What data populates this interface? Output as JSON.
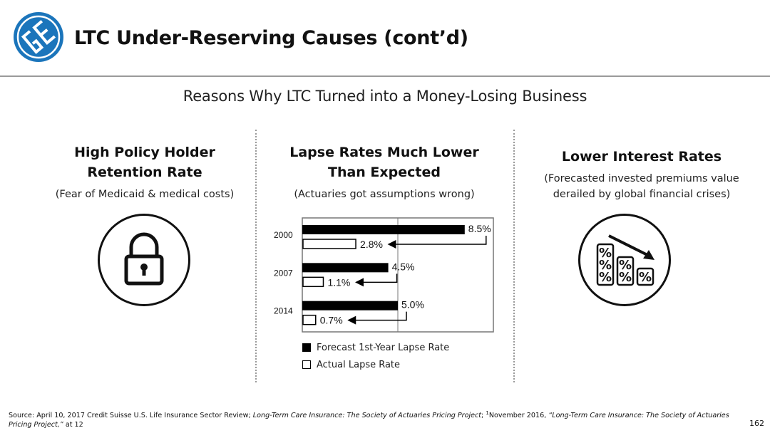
{
  "header": {
    "title": "LTC Under-Reserving Causes (cont’d)",
    "logo_icon": "company-logo-icon",
    "brand_color": "#1b75bb"
  },
  "subtitle": "Reasons Why LTC Turned into a Money-Losing Business",
  "columns": [
    {
      "heading_line1": "High Policy Holder",
      "heading_line2": "Retention Rate",
      "note_line1": "(Fear of Medicaid & medical costs)",
      "icon": "padlock-icon"
    },
    {
      "heading_line1": "Lapse Rates Much Lower",
      "heading_line2": "Than Expected",
      "note_line1": "(Actuaries got assumptions wrong)",
      "icon": "bar-chart"
    },
    {
      "heading_line1": "Lower Interest Rates",
      "note_line1": "(Forecasted invested premiums value",
      "note_line2": "derailed by global financial crises)",
      "icon": "falling-percent-icon"
    }
  ],
  "chart_data": {
    "type": "bar",
    "orientation": "horizontal",
    "categories": [
      "2000",
      "2007",
      "2014"
    ],
    "series": [
      {
        "name": "Forecast 1st-Year Lapse Rate",
        "values": [
          8.5,
          4.5,
          5.0
        ],
        "labels": [
          "8.5%",
          "4.5%",
          "5.0%"
        ],
        "color": "#000000"
      },
      {
        "name": "Actual Lapse Rate",
        "values": [
          2.8,
          1.1,
          0.7
        ],
        "labels": [
          "2.8%",
          "1.1%",
          "0.7%"
        ],
        "color": "#ffffff"
      }
    ],
    "xlim": [
      0,
      10
    ],
    "grid": true,
    "legend_position": "bottom",
    "annotations": "arrows from forecast to actual"
  },
  "footnote": {
    "source_prefix": "Source: April 10, 2017 Credit Suisse U.S. Life Insurance Sector Review; ",
    "source_italic_1": "Long-Term Care Insurance: The Society of Actuaries Pricing Project",
    "source_mid": "; ",
    "source_sup": "1",
    "source_mid2": "November 2016, ",
    "source_italic_2": "“Long-Term Care Insurance: The Society of Actuaries Pricing Project,”",
    "source_suffix": " at 12"
  },
  "page_number": "162"
}
